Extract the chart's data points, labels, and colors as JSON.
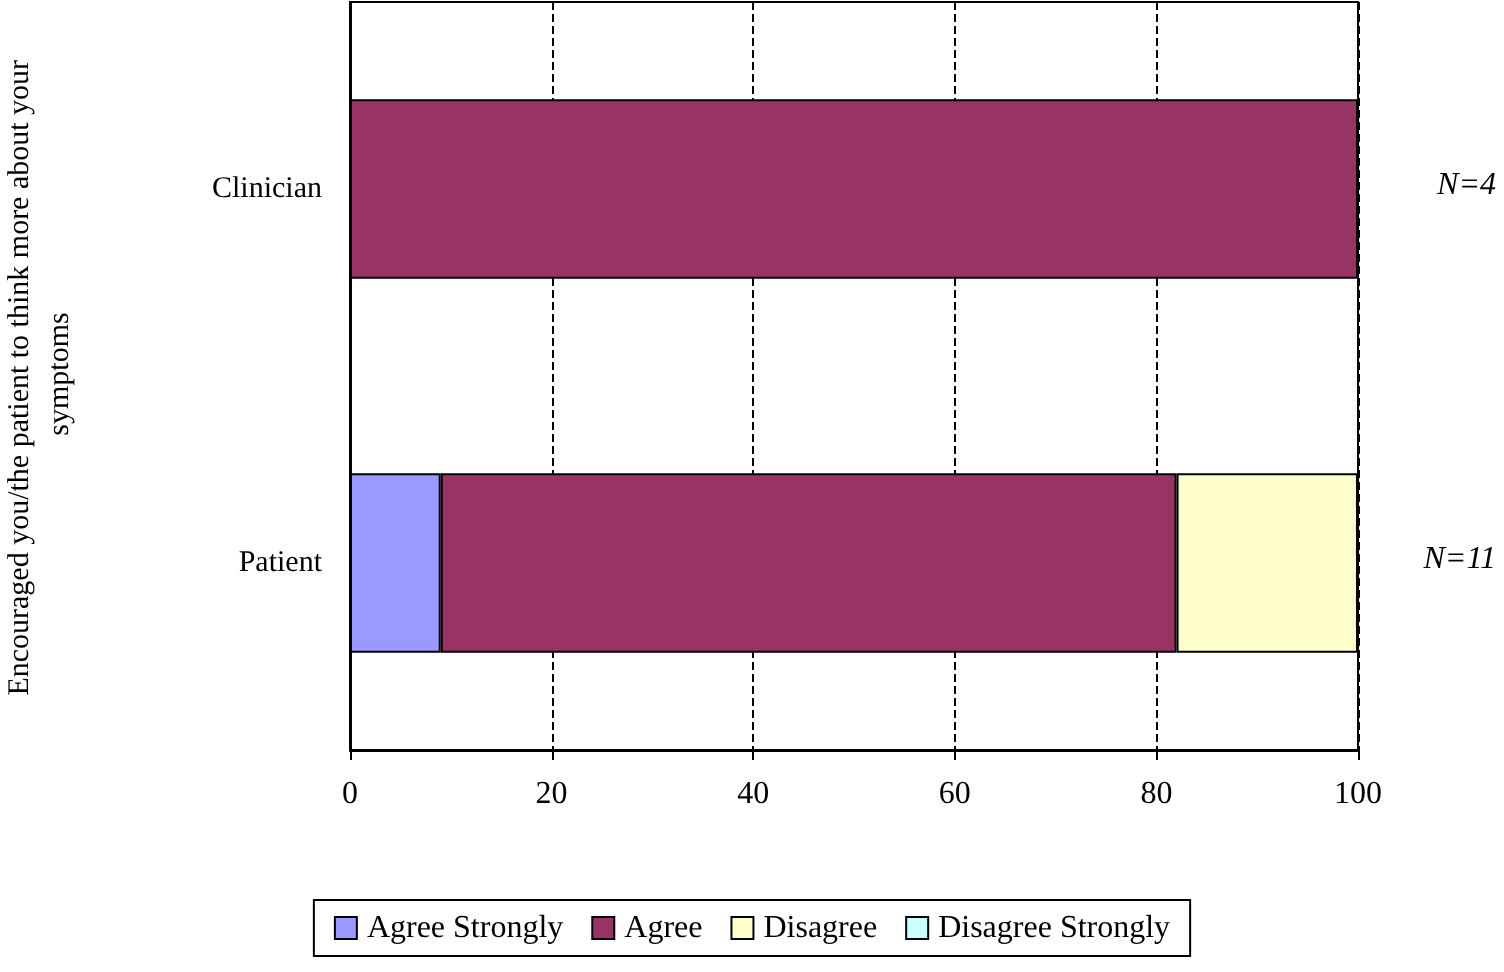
{
  "chart_data": {
    "type": "bar",
    "orientation": "horizontal",
    "stacked": true,
    "ylabel": "Encouraged you/the patient to think more about your symptoms",
    "categories": [
      "Clinician",
      "Patient"
    ],
    "series": [
      {
        "name": "Agree Strongly",
        "color": "#9999ff",
        "values": [
          0,
          9
        ]
      },
      {
        "name": "Agree",
        "color": "#993366",
        "values": [
          100,
          73
        ]
      },
      {
        "name": "Disagree",
        "color": "#ffffcc",
        "values": [
          0,
          18
        ]
      },
      {
        "name": "Disagree Strongly",
        "color": "#ccffff",
        "values": [
          0,
          0
        ]
      }
    ],
    "xlim": [
      0,
      100
    ],
    "xticks": [
      0,
      20,
      40,
      60,
      80,
      100
    ],
    "grid": "x",
    "legend": "bottom",
    "annotations": [
      "N=4",
      "N=11"
    ]
  }
}
